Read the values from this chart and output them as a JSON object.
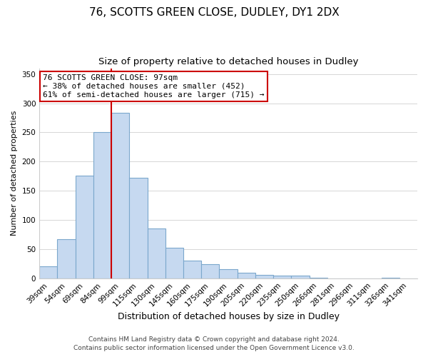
{
  "title": "76, SCOTTS GREEN CLOSE, DUDLEY, DY1 2DX",
  "subtitle": "Size of property relative to detached houses in Dudley",
  "xlabel": "Distribution of detached houses by size in Dudley",
  "ylabel": "Number of detached properties",
  "bar_labels": [
    "39sqm",
    "54sqm",
    "69sqm",
    "84sqm",
    "99sqm",
    "115sqm",
    "130sqm",
    "145sqm",
    "160sqm",
    "175sqm",
    "190sqm",
    "205sqm",
    "220sqm",
    "235sqm",
    "250sqm",
    "266sqm",
    "281sqm",
    "296sqm",
    "311sqm",
    "326sqm",
    "341sqm"
  ],
  "bar_heights": [
    20,
    67,
    176,
    250,
    283,
    172,
    85,
    52,
    30,
    24,
    16,
    10,
    6,
    4,
    4,
    1,
    0,
    0,
    0,
    1,
    0
  ],
  "bar_color": "#c6d9f0",
  "bar_edge_color": "#7ba7cc",
  "vline_position": 3.5,
  "vline_color": "#cc0000",
  "ylim": [
    0,
    360
  ],
  "yticks": [
    0,
    50,
    100,
    150,
    200,
    250,
    300,
    350
  ],
  "annotation_title": "76 SCOTTS GREEN CLOSE: 97sqm",
  "annotation_line1": "← 38% of detached houses are smaller (452)",
  "annotation_line2": "61% of semi-detached houses are larger (715) →",
  "annotation_box_color": "#ffffff",
  "annotation_box_edge": "#cc0000",
  "footer1": "Contains HM Land Registry data © Crown copyright and database right 2024.",
  "footer2": "Contains public sector information licensed under the Open Government Licence v3.0.",
  "title_fontsize": 11,
  "subtitle_fontsize": 9.5,
  "xlabel_fontsize": 9,
  "ylabel_fontsize": 8,
  "tick_fontsize": 7.5,
  "annotation_fontsize": 8,
  "footer_fontsize": 6.5
}
